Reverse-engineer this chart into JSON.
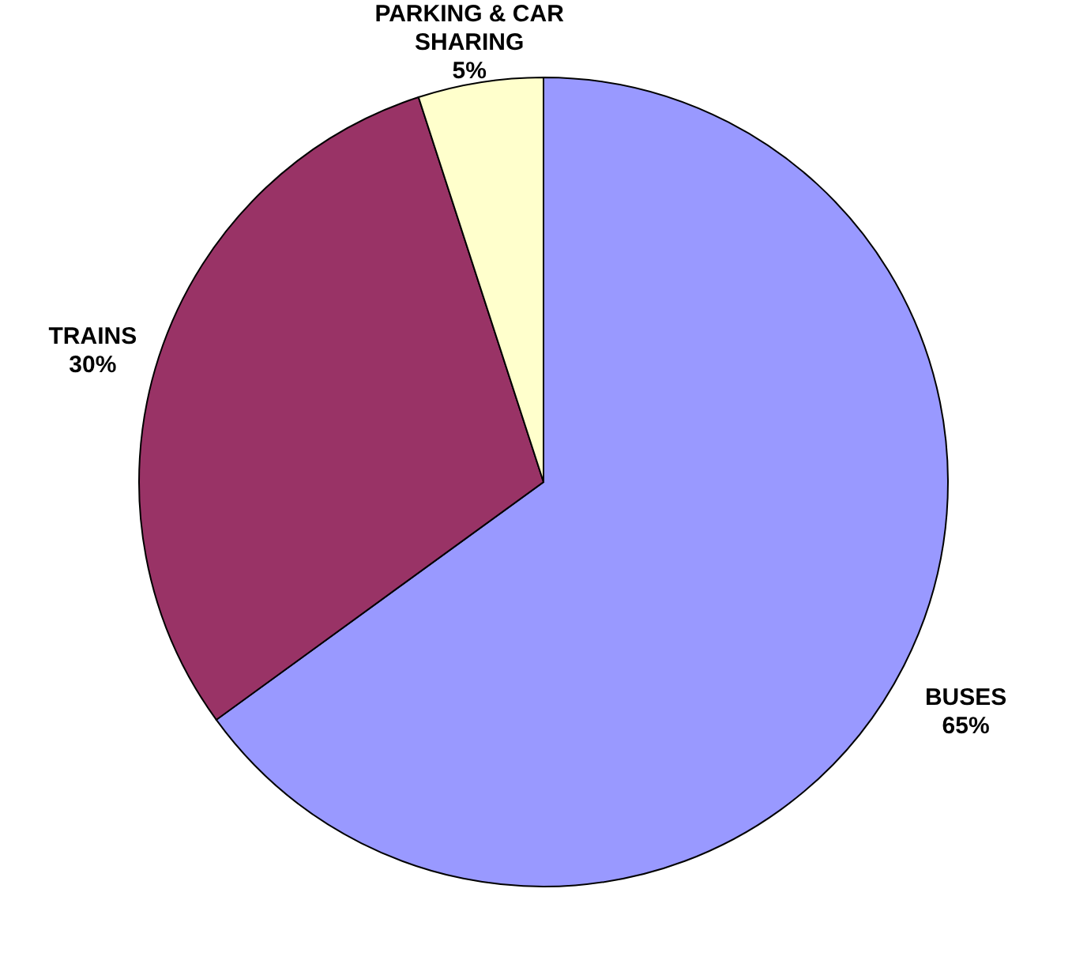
{
  "chart_data": {
    "type": "pie",
    "categories": [
      "BUSES",
      "TRAINS",
      "PARKING & CAR SHARING"
    ],
    "values": [
      65,
      30,
      5
    ],
    "colors": [
      "#9999ff",
      "#993366",
      "#ffffcc"
    ],
    "value_labels": [
      "65%",
      "30%",
      "5%"
    ]
  }
}
